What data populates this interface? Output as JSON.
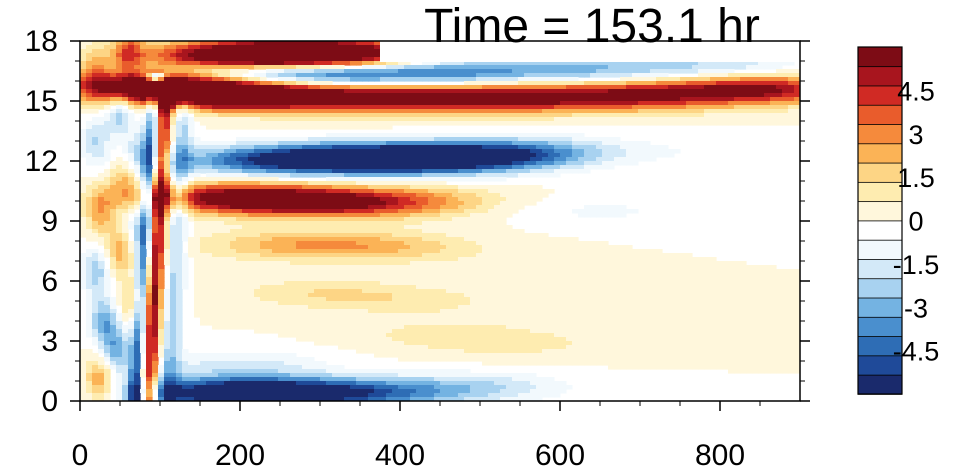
{
  "chart_data": {
    "type": "heatmap",
    "title": "Time = 153.1 hr",
    "xlabel": "",
    "ylabel": "",
    "x_ticks": [
      0,
      200,
      400,
      600,
      800
    ],
    "y_ticks": [
      0,
      3,
      6,
      9,
      12,
      15,
      18
    ],
    "xlim": [
      0,
      900
    ],
    "ylim": [
      0,
      18
    ],
    "grid": false,
    "colorbar": {
      "position": "right",
      "labels": [
        "4.5",
        "3",
        "1.5",
        "0",
        "-1.5",
        "-3",
        "-4.5"
      ],
      "label_values": [
        4.5,
        3,
        1.5,
        0,
        -1.5,
        -3,
        -4.5
      ],
      "min": -6,
      "max": 6,
      "colors": [
        "#1a2a6c",
        "#1f4a99",
        "#2e6db5",
        "#4a8fce",
        "#74b3e2",
        "#a8d2f0",
        "#d3e9f8",
        "#f2f9fd",
        "#ffffff",
        "#fff7dc",
        "#feecb0",
        "#fdd585",
        "#fbb356",
        "#f58a3c",
        "#e95c2c",
        "#d02a24",
        "#a8151e",
        "#7d0c15"
      ]
    },
    "features": [
      {
        "x": 100,
        "y": 15.8,
        "v": 6.0
      },
      {
        "x": 150,
        "y": 15.4,
        "v": 6.0
      },
      {
        "x": 250,
        "y": 15.3,
        "v": 5.8
      },
      {
        "x": 400,
        "y": 15.2,
        "v": 5.5
      },
      {
        "x": 550,
        "y": 15.2,
        "v": 5.2
      },
      {
        "x": 700,
        "y": 15.3,
        "v": 4.8
      },
      {
        "x": 850,
        "y": 15.6,
        "v": 5.5
      },
      {
        "x": 180,
        "y": 17.2,
        "v": 5.2
      },
      {
        "x": 260,
        "y": 17.3,
        "v": 5.8
      },
      {
        "x": 340,
        "y": 17.3,
        "v": 5.5
      },
      {
        "x": 200,
        "y": 16.4,
        "v": -4.5
      },
      {
        "x": 330,
        "y": 16.4,
        "v": -5.0
      },
      {
        "x": 480,
        "y": 16.4,
        "v": -3.5
      },
      {
        "x": 640,
        "y": 16.5,
        "v": -2.5
      },
      {
        "x": 800,
        "y": 16.7,
        "v": -2.0
      },
      {
        "x": 300,
        "y": 12.1,
        "v": -5.0
      },
      {
        "x": 400,
        "y": 12.1,
        "v": -5.5
      },
      {
        "x": 500,
        "y": 12.2,
        "v": -4.5
      },
      {
        "x": 580,
        "y": 12.5,
        "v": -2.0
      },
      {
        "x": 200,
        "y": 12.0,
        "v": -2.5
      },
      {
        "x": 180,
        "y": 10.2,
        "v": 4.5
      },
      {
        "x": 260,
        "y": 10.0,
        "v": 3.5
      },
      {
        "x": 340,
        "y": 9.9,
        "v": 3.0
      },
      {
        "x": 420,
        "y": 10.0,
        "v": 1.8
      },
      {
        "x": 250,
        "y": 7.8,
        "v": 1.5
      },
      {
        "x": 330,
        "y": 7.8,
        "v": 1.5
      },
      {
        "x": 420,
        "y": 7.6,
        "v": 1.0
      },
      {
        "x": 300,
        "y": 5.4,
        "v": 1.2
      },
      {
        "x": 420,
        "y": 5.0,
        "v": 0.9
      },
      {
        "x": 460,
        "y": 3.3,
        "v": 1.0
      },
      {
        "x": 560,
        "y": 2.8,
        "v": 0.7
      },
      {
        "x": 180,
        "y": 0.4,
        "v": -6.0
      },
      {
        "x": 280,
        "y": 0.4,
        "v": -4.0
      },
      {
        "x": 380,
        "y": 0.4,
        "v": -2.5
      },
      {
        "x": 500,
        "y": 0.7,
        "v": -1.8
      },
      {
        "x": 200,
        "y": 1.8,
        "v": -1.5
      },
      {
        "x": 650,
        "y": 9.5,
        "v": -0.8
      },
      {
        "x": 780,
        "y": 12.5,
        "v": -0.5
      }
    ],
    "diagonal_bands": [
      {
        "x0": 85,
        "y0": 0.3,
        "x1": 105,
        "y1": 15.5,
        "v": 6.0,
        "w": 12
      },
      {
        "x0": 70,
        "y0": 0.3,
        "x1": 95,
        "y1": 15.8,
        "v": -5.0,
        "w": 10
      },
      {
        "x0": 110,
        "y0": 0.5,
        "x1": 130,
        "y1": 15.0,
        "v": -2.2,
        "w": 14
      }
    ],
    "left_noise": [
      {
        "x": 20,
        "y": 16.5,
        "v": 2.0
      },
      {
        "x": 20,
        "y": 13.0,
        "v": -2.0
      },
      {
        "x": 25,
        "y": 9.5,
        "v": 2.5
      },
      {
        "x": 20,
        "y": 6.5,
        "v": -2.5
      },
      {
        "x": 30,
        "y": 4.0,
        "v": -3.0
      },
      {
        "x": 25,
        "y": 1.0,
        "v": 3.0
      },
      {
        "x": 50,
        "y": 14.5,
        "v": -2.5
      },
      {
        "x": 55,
        "y": 11.0,
        "v": 2.0
      },
      {
        "x": 50,
        "y": 7.5,
        "v": 2.5
      },
      {
        "x": 45,
        "y": 2.5,
        "v": -3.0
      },
      {
        "x": 60,
        "y": 17.5,
        "v": 3.0
      },
      {
        "x": 75,
        "y": 12.5,
        "v": -1.8
      },
      {
        "x": 70,
        "y": 8.5,
        "v": -1.5
      },
      {
        "x": 65,
        "y": 5.0,
        "v": 1.8
      }
    ]
  }
}
